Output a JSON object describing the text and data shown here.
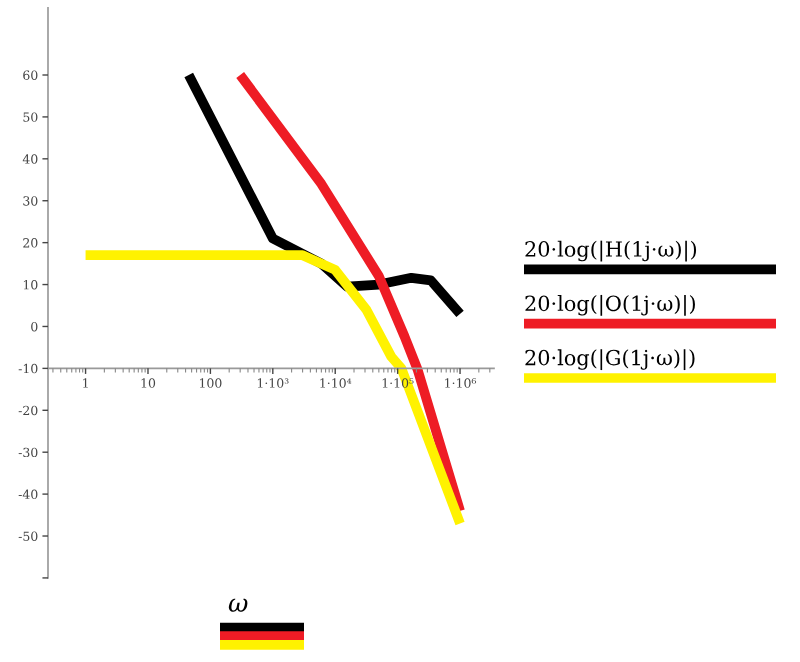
{
  "chart_data": {
    "type": "line",
    "xlabel": "ω",
    "log": "x",
    "xlim": [
      0.25,
      3500000
    ],
    "ylim": [
      -60,
      76
    ],
    "xticks": [
      {
        "value": 1,
        "label": "1"
      },
      {
        "value": 10,
        "label": "10"
      },
      {
        "value": 100,
        "label": "100"
      },
      {
        "value": 1000,
        "label": "1·10³"
      },
      {
        "value": 10000,
        "label": "1·10⁴"
      },
      {
        "value": 100000,
        "label": "1·10⁵"
      },
      {
        "value": 1000000,
        "label": "1·10⁶"
      }
    ],
    "yticks": [
      {
        "value": -60,
        "label": null
      },
      -50,
      -40,
      -30,
      -20,
      -10,
      0,
      10,
      20,
      30,
      40,
      50,
      60
    ],
    "grid": false,
    "legend": "right",
    "marker": "none",
    "line_style": "solid",
    "series": [
      {
        "name": "20·log(|H(1j·ω)|)",
        "color": "#000000",
        "x": [
          45,
          1000,
          6000,
          15500,
          50000,
          166000,
          340000,
          1000000
        ],
        "values": [
          60,
          21,
          15,
          9.5,
          10,
          11.6,
          11,
          3
        ]
      },
      {
        "name": "20·log(|O(1j·ω)|)",
        "color": "#ee1c25",
        "x": [
          300,
          6000,
          50000,
          129000,
          209000,
          1000000
        ],
        "values": [
          60,
          34,
          12,
          -2.4,
          -10.3,
          -44
        ]
      },
      {
        "name": "20·log(|G(1j·ω)|)",
        "color": "#fff200",
        "x": [
          1,
          100,
          1000,
          3000,
          10000,
          31600,
          79000,
          115000,
          1000000
        ],
        "values": [
          17,
          17,
          17,
          17,
          13.5,
          4,
          -7.2,
          -10,
          -47
        ]
      }
    ]
  }
}
